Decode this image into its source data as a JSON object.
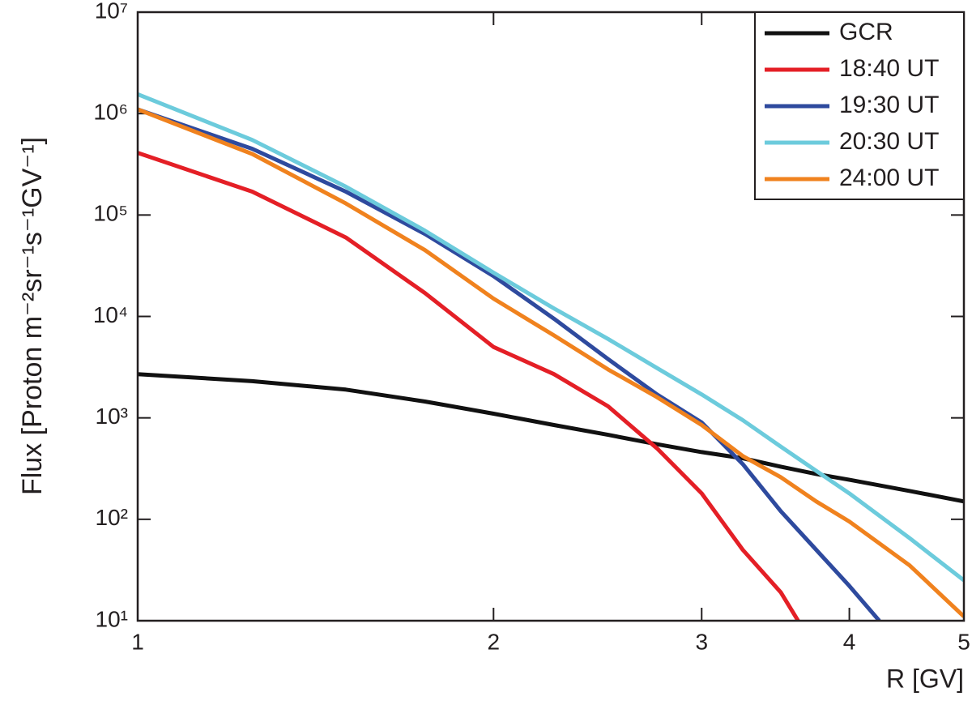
{
  "chart_data": {
    "type": "line",
    "x_label": "R [GV]",
    "y_label": "Flux [Proton m⁻²sr⁻¹s⁻¹GV⁻¹]",
    "xlog": true,
    "ylog": true,
    "legend": "upper right",
    "xlim": [
      1,
      5
    ],
    "xticks": [
      1,
      2,
      3,
      4,
      5
    ],
    "ylim": [
      10,
      10000000
    ],
    "yticks": [
      {
        "value": 10,
        "label": "10¹"
      },
      {
        "value": 100,
        "label": "10²"
      },
      {
        "value": 1000,
        "label": "10³"
      },
      {
        "value": 10000,
        "label": "10⁴"
      },
      {
        "value": 100000,
        "label": "10⁵"
      },
      {
        "value": 1000000,
        "label": "10⁶"
      },
      {
        "value": 10000000,
        "label": "10⁷"
      }
    ],
    "series": [
      {
        "name": "GCR",
        "color": "#111111",
        "x": [
          1,
          1.25,
          1.5,
          1.75,
          2,
          2.25,
          2.5,
          2.75,
          3,
          3.25,
          3.5,
          3.75,
          4,
          4.5,
          5
        ],
        "values": [
          2700,
          2300,
          1900,
          1450,
          1100,
          850,
          680,
          550,
          460,
          400,
          330,
          280,
          245,
          190,
          150
        ]
      },
      {
        "name": "18:40 UT",
        "color": "#e41f26",
        "x": [
          1,
          1.25,
          1.5,
          1.75,
          2,
          2.25,
          2.5,
          2.75,
          3,
          3.25,
          3.5,
          3.62
        ],
        "values": [
          410000,
          170000,
          60000,
          17000,
          5000,
          2700,
          1300,
          500,
          180,
          50,
          19,
          10
        ]
      },
      {
        "name": "19:30 UT",
        "color": "#2e4a9e",
        "x": [
          1,
          1.25,
          1.5,
          1.75,
          2,
          2.25,
          2.5,
          2.75,
          3,
          3.25,
          3.5,
          3.75,
          4,
          4.24
        ],
        "values": [
          1100000,
          450000,
          170000,
          65000,
          25000,
          9500,
          3800,
          1700,
          900,
          350,
          120,
          50,
          22,
          10
        ]
      },
      {
        "name": "20:30 UT",
        "color": "#6ccbdc",
        "x": [
          1,
          1.25,
          1.5,
          1.75,
          2,
          2.25,
          2.5,
          2.75,
          3,
          3.25,
          3.5,
          3.75,
          4,
          4.5,
          5
        ],
        "values": [
          1550000,
          550000,
          190000,
          70000,
          27000,
          12000,
          6000,
          3100,
          1700,
          950,
          520,
          300,
          180,
          65,
          25
        ]
      },
      {
        "name": "24:00 UT",
        "color": "#f0821e",
        "x": [
          1,
          1.25,
          1.5,
          1.75,
          2,
          2.25,
          2.5,
          2.75,
          3,
          3.25,
          3.5,
          3.75,
          4,
          4.5,
          5
        ],
        "values": [
          1100000,
          400000,
          130000,
          45000,
          15000,
          6500,
          3000,
          1600,
          850,
          420,
          260,
          150,
          95,
          35,
          11
        ]
      }
    ]
  }
}
